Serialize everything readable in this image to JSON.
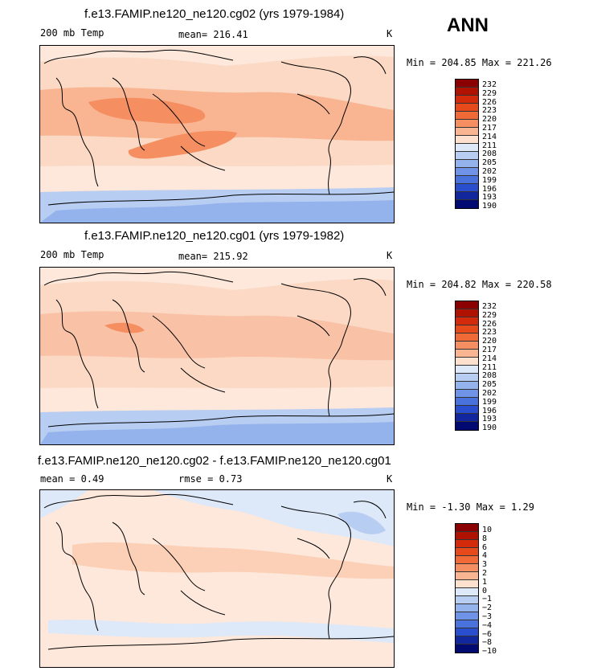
{
  "season": "ANN",
  "panels": [
    {
      "title": "f.e13.FAMIP.ne120_ne120.cg02 (yrs 1979-1984)",
      "left_label": "200 mb Temp",
      "mid_label": "mean= 216.41",
      "units": "K",
      "min_max": "Min = 204.85 Max = 221.26",
      "levels": [
        "232",
        "229",
        "226",
        "223",
        "220",
        "217",
        "214",
        "211",
        "208",
        "205",
        "202",
        "199",
        "196",
        "193",
        "190"
      ]
    },
    {
      "title": "f.e13.FAMIP.ne120_ne120.cg01 (yrs 1979-1982)",
      "left_label": "200 mb Temp",
      "mid_label": "mean= 215.92",
      "units": "K",
      "min_max": "Min = 204.82 Max = 220.58",
      "levels": [
        "232",
        "229",
        "226",
        "223",
        "220",
        "217",
        "214",
        "211",
        "208",
        "205",
        "202",
        "199",
        "196",
        "193",
        "190"
      ]
    },
    {
      "title": "f.e13.FAMIP.ne120_ne120.cg02 - f.e13.FAMIP.ne120_ne120.cg01",
      "left_label": "mean =   0.49",
      "mid_label": "rmse =   0.73",
      "units": "K",
      "min_max": "Min =  -1.30 Max =   1.29",
      "levels": [
        "10",
        "8",
        "6",
        "4",
        "3",
        "2",
        "1",
        "0",
        "−1",
        "−2",
        "−3",
        "−4",
        "−6",
        "−8",
        "−10"
      ]
    }
  ],
  "colors": {
    "colorbar": [
      "#8b0000",
      "#b01200",
      "#d42a0c",
      "#e64a1a",
      "#f06a38",
      "#f58e60",
      "#f9b592",
      "#fde0cd",
      "#dde8f8",
      "#b8cdf2",
      "#94b2ec",
      "#6f93e6",
      "#4a72dd",
      "#2a4fce",
      "#12279e",
      "#000a70"
    ]
  }
}
